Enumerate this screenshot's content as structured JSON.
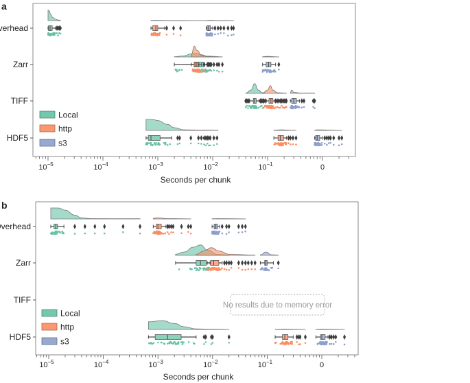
{
  "chart_data": [
    {
      "panel_label": "a",
      "type": "raincloud",
      "title": "",
      "xlabel": "Seconds per chunk",
      "xscale": "log",
      "xlim": [
        5.3e-06,
        3.98
      ],
      "grid": false,
      "xticks": [
        {
          "value": 1e-05,
          "base": "10",
          "exp": "−5"
        },
        {
          "value": 0.0001,
          "base": "10",
          "exp": "−4"
        },
        {
          "value": 0.001,
          "base": "10",
          "exp": "−3"
        },
        {
          "value": 0.01,
          "base": "10",
          "exp": "−2"
        },
        {
          "value": 0.1,
          "base": "10",
          "exp": "−1"
        },
        {
          "value": 1,
          "base": "0",
          "exp": ""
        }
      ],
      "categories": [
        "Overhead",
        "Zarr",
        "TIFF",
        "HDF5"
      ],
      "series": [
        {
          "name": "Local",
          "color": "#66c2a5"
        },
        {
          "name": "http",
          "color": "#fc8d62"
        },
        {
          "name": "s3",
          "color": "#8da0cb"
        }
      ],
      "legend": "lower-left",
      "outlier_color": "#3d3d3d",
      "groups": [
        {
          "category": "Overhead",
          "series": "Local",
          "whisker_low": 1e-05,
          "q1": 1.02e-05,
          "median": 1.09e-05,
          "q3": 1.19e-05,
          "whisker_high": 1.37e-05,
          "outliers": [
            1.45e-05,
            1.52e-05,
            1.6e-05,
            1.68e-05
          ],
          "density": [
            [
              1e-05,
              0.95
            ],
            [
              1.05e-05,
              0.9
            ],
            [
              1.12e-05,
              0.55
            ],
            [
              1.2e-05,
              0.3
            ],
            [
              1.35e-05,
              0.15
            ],
            [
              1.5e-05,
              0.06
            ],
            [
              1.7e-05,
              0.02
            ]
          ]
        },
        {
          "category": "Overhead",
          "series": "http",
          "whisker_low": 0.00075,
          "q1": 0.00081,
          "median": 0.00092,
          "q3": 0.001,
          "whisker_high": 0.00133,
          "outliers": [
            0.00145,
            0.00194,
            0.0026
          ],
          "density": [
            [
              0.00075,
              0.02
            ],
            [
              0.0009,
              0.03
            ],
            [
              0.0015,
              0.015
            ],
            [
              0.004,
              0.01
            ],
            [
              0.0079,
              0.01
            ]
          ]
        },
        {
          "category": "Overhead",
          "series": "s3",
          "whisker_low": 0.0076,
          "q1": 0.0079,
          "median": 0.0084,
          "q3": 0.0091,
          "whisker_high": 0.01,
          "outliers": [
            0.011,
            0.0125,
            0.014,
            0.016,
            0.019,
            0.022,
            0.024
          ],
          "density": [
            [
              0.0076,
              0.01
            ],
            [
              0.009,
              0.03
            ],
            [
              0.012,
              0.015
            ],
            [
              0.024,
              0.01
            ]
          ]
        },
        {
          "category": "Zarr",
          "series": "Local",
          "whisker_low": 0.002,
          "q1": 0.0046,
          "median": 0.0056,
          "q3": 0.0069,
          "whisker_high": 0.008,
          "outliers": [
            0.0083,
            0.0086,
            0.009,
            0.0094,
            0.0105,
            0.012,
            0.015
          ],
          "density": [
            [
              0.002,
              0.02
            ],
            [
              0.003,
              0.1
            ],
            [
              0.004,
              0.28
            ],
            [
              0.005,
              0.35
            ],
            [
              0.006,
              0.22
            ],
            [
              0.008,
              0.08
            ],
            [
              0.015,
              0.01
            ]
          ]
        },
        {
          "category": "Zarr",
          "series": "http",
          "whisker_low": 0.0041,
          "q1": 0.0046,
          "median": 0.005,
          "q3": 0.0054,
          "whisker_high": 0.0063,
          "outliers": [
            0.007,
            0.008,
            0.013
          ],
          "density": [
            [
              0.0041,
              0.2
            ],
            [
              0.0046,
              1.0
            ],
            [
              0.0052,
              0.6
            ],
            [
              0.0063,
              0.12
            ],
            [
              0.008,
              0.05
            ],
            [
              0.013,
              0.01
            ]
          ]
        },
        {
          "category": "Zarr",
          "series": "s3",
          "whisker_low": 0.081,
          "q1": 0.094,
          "median": 0.104,
          "q3": 0.115,
          "whisker_high": 0.14,
          "outliers": [
            0.16
          ],
          "density": [
            [
              0.081,
              0.02
            ],
            [
              0.1,
              0.05
            ],
            [
              0.16,
              0.01
            ]
          ]
        },
        {
          "category": "TIFF",
          "series": "Local",
          "whisker_low": 0.047,
          "q1": 0.055,
          "median": 0.058,
          "q3": 0.062,
          "whisker_high": 0.07,
          "outliers": [
            0.04,
            0.042,
            0.044,
            0.046,
            0.074,
            0.078,
            0.082,
            0.09
          ],
          "density": [
            [
              0.04,
              0.02
            ],
            [
              0.05,
              0.3
            ],
            [
              0.058,
              0.9
            ],
            [
              0.068,
              0.3
            ],
            [
              0.08,
              0.06
            ],
            [
              0.09,
              0.02
            ]
          ]
        },
        {
          "category": "TIFF",
          "series": "http",
          "whisker_low": 0.095,
          "q1": 0.106,
          "median": 0.115,
          "q3": 0.125,
          "whisker_high": 0.135,
          "outliers": [
            0.085,
            0.09,
            0.14,
            0.15,
            0.16,
            0.17,
            0.18,
            0.19,
            0.2,
            0.21,
            0.22
          ],
          "density": [
            [
              0.08,
              0.02
            ],
            [
              0.1,
              0.3
            ],
            [
              0.112,
              0.7
            ],
            [
              0.125,
              0.3
            ],
            [
              0.15,
              0.06
            ],
            [
              0.22,
              0.02
            ]
          ]
        },
        {
          "category": "TIFF",
          "series": "s3",
          "whisker_low": 0.26,
          "q1": 0.275,
          "median": 0.3,
          "q3": 0.335,
          "whisker_high": 0.38,
          "outliers": [
            0.42,
            0.46,
            0.68,
            0.72
          ],
          "density": [
            [
              0.26,
              0.05
            ],
            [
              0.272,
              0.3
            ],
            [
              0.3,
              0.1
            ],
            [
              0.4,
              0.02
            ],
            [
              0.72,
              0.02
            ]
          ]
        },
        {
          "category": "HDF5",
          "series": "Local",
          "whisker_low": 0.00061,
          "q1": 0.00067,
          "median": 0.00075,
          "q3": 0.0011,
          "whisker_high": 0.0018,
          "outliers": [
            0.0023,
            0.0025,
            0.004,
            0.0055,
            0.0062,
            0.007,
            0.0075,
            0.008,
            0.0085,
            0.009,
            0.0105,
            0.012
          ],
          "density": [
            [
              0.00061,
              1.0
            ],
            [
              0.0008,
              1.0
            ],
            [
              0.001,
              0.9
            ],
            [
              0.0015,
              0.55
            ],
            [
              0.002,
              0.25
            ],
            [
              0.003,
              0.05
            ],
            [
              0.008,
              0.03
            ],
            [
              0.0125,
              0.02
            ]
          ]
        },
        {
          "category": "HDF5",
          "series": "http",
          "whisker_low": 0.13,
          "q1": 0.155,
          "median": 0.17,
          "q3": 0.195,
          "whisker_high": 0.22,
          "outliers": [
            0.24,
            0.26,
            0.29,
            0.33
          ],
          "density": [
            [
              0.13,
              0.03
            ],
            [
              0.17,
              0.05
            ],
            [
              0.33,
              0.01
            ]
          ]
        },
        {
          "category": "HDF5",
          "series": "s3",
          "whisker_low": 0.72,
          "q1": 0.75,
          "median": 0.8,
          "q3": 0.89,
          "whisker_high": 1.0,
          "outliers": [
            1.1,
            1.2,
            1.3,
            1.4,
            1.6,
            2.0,
            2.25
          ],
          "density": [
            [
              0.72,
              0.02
            ],
            [
              0.8,
              0.05
            ],
            [
              2.25,
              0.01
            ]
          ]
        }
      ]
    },
    {
      "panel_label": "b",
      "type": "raincloud",
      "title": "",
      "xlabel": "Seconds per chunk",
      "xscale": "log",
      "xlim": [
        5.75e-06,
        4.4
      ],
      "grid": false,
      "xticks": [
        {
          "value": 1e-05,
          "base": "10",
          "exp": "−5"
        },
        {
          "value": 0.0001,
          "base": "10",
          "exp": "−4"
        },
        {
          "value": 0.001,
          "base": "10",
          "exp": "−3"
        },
        {
          "value": 0.01,
          "base": "10",
          "exp": "−2"
        },
        {
          "value": 0.1,
          "base": "10",
          "exp": "−1"
        },
        {
          "value": 1,
          "base": "0",
          "exp": ""
        }
      ],
      "categories": [
        "Overhead",
        "Zarr",
        "TIFF",
        "HDF5"
      ],
      "series": [
        {
          "name": "Local",
          "color": "#66c2a5"
        },
        {
          "name": "http",
          "color": "#fc8d62"
        },
        {
          "name": "s3",
          "color": "#8da0cb"
        }
      ],
      "legend": "lower-left",
      "outlier_color": "#3d3d3d",
      "annotation": "No results due to memory error",
      "groups": [
        {
          "category": "Overhead",
          "series": "Local",
          "whisker_low": 1.09e-05,
          "q1": 1.25e-05,
          "median": 1.35e-05,
          "q3": 1.45e-05,
          "whisker_high": 1.9e-05,
          "outliers": [
            3e-05,
            4.6e-05,
            7e-05,
            0.000105,
            0.00023,
            0.00047
          ],
          "density": [
            [
              1.09e-05,
              1.0
            ],
            [
              1.5e-05,
              1.0
            ],
            [
              2e-05,
              0.8
            ],
            [
              3e-05,
              0.35
            ],
            [
              4e-05,
              0.1
            ],
            [
              6e-05,
              0.03
            ],
            [
              0.00047,
              0.02
            ]
          ]
        },
        {
          "category": "Overhead",
          "series": "http",
          "whisker_low": 0.00082,
          "q1": 0.00093,
          "median": 0.001,
          "q3": 0.00115,
          "whisker_high": 0.0014,
          "outliers": [
            0.0015,
            0.0016,
            0.00175,
            0.0019,
            0.0027,
            0.0036,
            0.004
          ],
          "density": [
            [
              0.00082,
              0.05
            ],
            [
              0.001,
              0.1
            ],
            [
              0.0015,
              0.03
            ],
            [
              0.004,
              0.01
            ]
          ]
        },
        {
          "category": "Overhead",
          "series": "s3",
          "whisker_low": 0.0098,
          "q1": 0.0107,
          "median": 0.0115,
          "q3": 0.0123,
          "whisker_high": 0.0135,
          "outliers": [
            0.015,
            0.018,
            0.02,
            0.03,
            0.035,
            0.04
          ],
          "density": [
            [
              0.0098,
              0.02
            ],
            [
              0.012,
              0.03
            ],
            [
              0.04,
              0.01
            ]
          ]
        },
        {
          "category": "Zarr",
          "series": "Local",
          "whisker_low": 0.0021,
          "q1": 0.005,
          "median": 0.006,
          "q3": 0.0077,
          "whisker_high": 0.009,
          "outliers": [],
          "density": [
            [
              0.0021,
              0.1
            ],
            [
              0.003,
              0.3
            ],
            [
              0.0045,
              0.75
            ],
            [
              0.006,
              0.95
            ],
            [
              0.008,
              0.5
            ],
            [
              0.012,
              0.1
            ],
            [
              0.02,
              0.02
            ]
          ]
        },
        {
          "category": "Zarr",
          "series": "http",
          "whisker_low": 0.008,
          "q1": 0.0092,
          "median": 0.0105,
          "q3": 0.013,
          "whisker_high": 0.015,
          "outliers": [
            0.0165,
            0.018,
            0.02,
            0.022,
            0.03,
            0.035,
            0.04,
            0.045,
            0.052,
            0.06
          ],
          "density": [
            [
              0.005,
              0.1
            ],
            [
              0.007,
              0.4
            ],
            [
              0.0095,
              0.7
            ],
            [
              0.013,
              0.4
            ],
            [
              0.02,
              0.1
            ],
            [
              0.06,
              0.02
            ]
          ]
        },
        {
          "category": "Zarr",
          "series": "s3",
          "whisker_low": 0.075,
          "q1": 0.09,
          "median": 0.095,
          "q3": 0.1,
          "whisker_high": 0.13,
          "outliers": [
            0.16
          ],
          "density": [
            [
              0.075,
              0.05
            ],
            [
              0.095,
              0.3
            ],
            [
              0.12,
              0.05
            ],
            [
              0.16,
              0.02
            ]
          ]
        },
        {
          "category": "HDF5",
          "series": "Local",
          "whisker_low": 0.00067,
          "q1": 0.00089,
          "median": 0.0015,
          "q3": 0.00266,
          "whisker_high": 0.005,
          "outliers": [
            0.007,
            0.0075,
            0.0095,
            0.01,
            0.02
          ],
          "density": [
            [
              0.00067,
              0.7
            ],
            [
              0.0012,
              0.8
            ],
            [
              0.002,
              0.55
            ],
            [
              0.003,
              0.25
            ],
            [
              0.005,
              0.05
            ],
            [
              0.01,
              0.03
            ],
            [
              0.02,
              0.01
            ]
          ]
        },
        {
          "category": "HDF5",
          "series": "http",
          "whisker_low": 0.14,
          "q1": 0.19,
          "median": 0.21,
          "q3": 0.24,
          "whisker_high": 0.3,
          "outliers": [
            0.35,
            0.38,
            0.4,
            0.5
          ],
          "density": [
            [
              0.14,
              0.02
            ],
            [
              0.21,
              0.04
            ],
            [
              0.5,
              0.01
            ]
          ]
        },
        {
          "category": "HDF5",
          "series": "s3",
          "whisker_low": 0.78,
          "q1": 0.95,
          "median": 1.0,
          "q3": 1.15,
          "whisker_high": 1.3,
          "outliers": [
            1.4,
            1.5,
            1.65,
            1.8,
            2.6
          ],
          "density": [
            [
              0.78,
              0.02
            ],
            [
              1.0,
              0.04
            ],
            [
              2.6,
              0.01
            ]
          ]
        }
      ]
    }
  ]
}
